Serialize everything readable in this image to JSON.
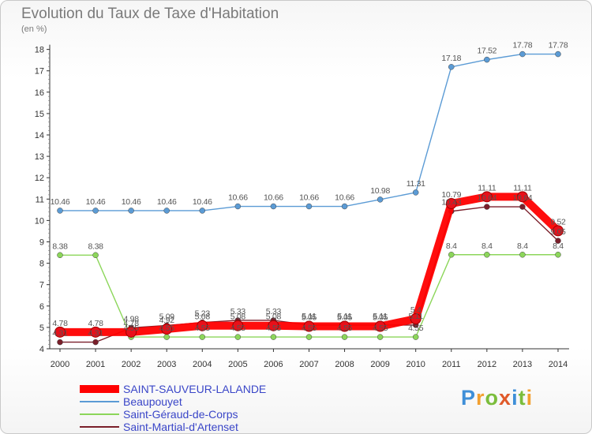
{
  "title": "Evolution du Taux de Taxe d'Habitation",
  "subtitle": "(en %)",
  "logo": {
    "letters": [
      "P",
      "r",
      "o",
      "x",
      "i",
      "t",
      "i"
    ],
    "colors": [
      "#3f8fd8",
      "#f2a030",
      "#7bbd3c",
      "#e05a2a",
      "#3f8fd8",
      "#7bbd3c",
      "#f2a030"
    ]
  },
  "chart_data": {
    "type": "line",
    "title": "Evolution du Taux de Taxe d'Habitation",
    "ylabel": "(en %)",
    "x": [
      "2000",
      "2001",
      "2002",
      "2003",
      "2004",
      "2005",
      "2006",
      "2007",
      "2008",
      "2009",
      "2010",
      "2011",
      "2012",
      "2013",
      "2014"
    ],
    "ylim": [
      4,
      18
    ],
    "yticks": [
      "4",
      "5",
      "6",
      "7",
      "8",
      "9",
      "10",
      "11",
      "12",
      "13",
      "14",
      "15",
      "16",
      "17",
      "18"
    ],
    "grid": false,
    "legend": "bottom-left",
    "series": [
      {
        "name": "SAINT-SAUVEUR-LALANDE",
        "color": "#ff0000",
        "values": [
          4.78,
          4.78,
          4.78,
          4.92,
          5.08,
          5.08,
          5.08,
          5.05,
          5.05,
          5.05,
          5.4,
          10.79,
          11.11,
          11.11,
          9.52
        ],
        "labels": [
          "4.78",
          "4.78",
          "4.78",
          "4.92",
          "5.08",
          "5.08",
          "5.08",
          "5.05",
          "5.05",
          "5.05",
          "5.4",
          "10.79",
          "11.11",
          "11.11",
          "9.52"
        ]
      },
      {
        "name": "Beaupouyet",
        "color": "#5b9bd5",
        "values": [
          10.46,
          10.46,
          10.46,
          10.46,
          10.46,
          10.66,
          10.66,
          10.66,
          10.66,
          10.98,
          11.31,
          17.18,
          17.52,
          17.78,
          17.78
        ],
        "labels": [
          "10.46",
          "10.46",
          "10.46",
          "10.46",
          "10.46",
          "10.66",
          "10.66",
          "10.66",
          "10.66",
          "10.98",
          "11.31",
          "17.18",
          "17.52",
          "17.78",
          "17.78"
        ]
      },
      {
        "name": "Saint-Géraud-de-Corps",
        "color": "#8cd65a",
        "values": [
          8.38,
          8.38,
          4.55,
          4.55,
          4.55,
          4.55,
          4.55,
          4.55,
          4.55,
          4.55,
          4.55,
          8.4,
          8.4,
          8.4,
          8.4
        ],
        "labels": [
          "8.38",
          "8.38",
          "4.55",
          "4.55",
          "4.55",
          "4.55",
          "4.55",
          "4.55",
          "4.55",
          "4.55",
          "4.55",
          "8.4",
          "8.4",
          "8.4",
          "8.4"
        ]
      },
      {
        "name": "Saint-Martial-d'Artenset",
        "color": "#7a1f2a",
        "values": [
          4.31,
          4.31,
          4.98,
          5.09,
          5.23,
          5.33,
          5.33,
          5.11,
          5.11,
          5.11,
          5.11,
          10.43,
          10.64,
          10.64,
          9.05
        ],
        "labels": [
          "4.31",
          "4.31",
          "4.98",
          "5.09",
          "5.23",
          "5.33",
          "5.33",
          "5.11",
          "5.11",
          "5.11",
          "5.11",
          "10.43",
          "10.64",
          "10.64",
          "9.05"
        ]
      }
    ]
  }
}
